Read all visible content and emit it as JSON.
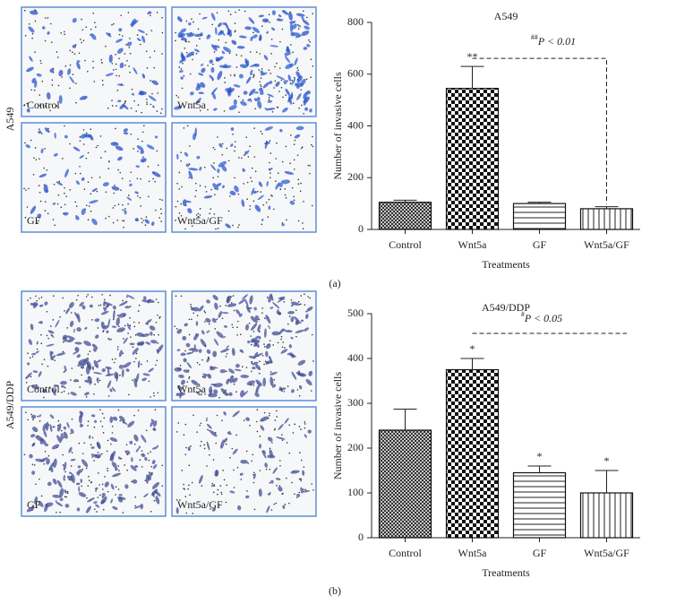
{
  "panels": [
    {
      "label": "(a)",
      "row_label": "A549",
      "images": [
        "Control",
        "Wnt5a",
        "GF",
        "Wnt5a/GF"
      ]
    },
    {
      "label": "(b)",
      "row_label": "A549/DDP",
      "images": [
        "Control",
        "Wnt5a",
        "GF",
        "Wnt5a/GF"
      ]
    }
  ],
  "chart_data": [
    {
      "type": "bar",
      "title": "A549",
      "x_label": "Treatments",
      "y_label": "Number of invasive cells",
      "categories": [
        "Control",
        "Wnt5a",
        "GF",
        "Wnt5a/GF"
      ],
      "values": [
        105,
        545,
        100,
        80
      ],
      "errors": [
        8,
        85,
        5,
        8
      ],
      "patterns": [
        "crosshatch",
        "checker",
        "hlines",
        "vlines"
      ],
      "significance": [
        null,
        "**",
        null,
        null
      ],
      "comparison": {
        "sup": "##",
        "text": "P < 0.01"
      },
      "ylim": [
        0,
        800
      ],
      "yticks": [
        0,
        200,
        400,
        600,
        800
      ]
    },
    {
      "type": "bar",
      "title": "A549/DDP",
      "x_label": "Treatments",
      "y_label": "Number of invasive cells",
      "categories": [
        "Control",
        "Wnt5a",
        "GF",
        "Wnt5a/GF"
      ],
      "values": [
        240,
        375,
        145,
        100
      ],
      "errors": [
        47,
        25,
        15,
        50
      ],
      "patterns": [
        "crosshatch",
        "checker",
        "hlines",
        "vlines"
      ],
      "significance": [
        null,
        "*",
        "*",
        "*"
      ],
      "comparison": {
        "sup": "#",
        "text": "P < 0.05"
      },
      "ylim": [
        0,
        500
      ],
      "yticks": [
        0,
        100,
        200,
        300,
        400,
        500
      ]
    }
  ]
}
